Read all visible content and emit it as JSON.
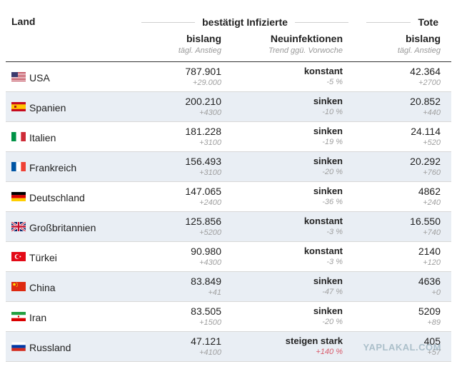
{
  "header": {
    "land": "Land",
    "group_label": "bestätigt Infizierte",
    "tote": "Tote",
    "col1_main": "bislang",
    "col1_sub": "tägl. Anstieg",
    "col2_main": "Neuinfektionen",
    "col2_sub": "Trend ggü. Vorwoche",
    "col3_main": "bislang",
    "col3_sub": "tägl. Anstieg"
  },
  "rows": [
    {
      "country": "USA",
      "flag": "us-flag",
      "infected": "787.901",
      "infected_daily": "+29.000",
      "trend": "konstant",
      "trend_color": "orange",
      "trend_change": "-5 %",
      "deaths": "42.364",
      "deaths_daily": "+2700"
    },
    {
      "country": "Spanien",
      "flag": "es-flag",
      "infected": "200.210",
      "infected_daily": "+4300",
      "trend": "sinken",
      "trend_color": "gray",
      "trend_change": "-10 %",
      "deaths": "20.852",
      "deaths_daily": "+440"
    },
    {
      "country": "Italien",
      "flag": "it-flag",
      "infected": "181.228",
      "infected_daily": "+3100",
      "trend": "sinken",
      "trend_color": "gray",
      "trend_change": "-19 %",
      "deaths": "24.114",
      "deaths_daily": "+520"
    },
    {
      "country": "Frankreich",
      "flag": "fr-flag",
      "infected": "156.493",
      "infected_daily": "+3100",
      "trend": "sinken",
      "trend_color": "gray",
      "trend_change": "-20 %",
      "deaths": "20.292",
      "deaths_daily": "+760"
    },
    {
      "country": "Deutschland",
      "flag": "de-flag",
      "infected": "147.065",
      "infected_daily": "+2400",
      "trend": "sinken",
      "trend_color": "gray",
      "trend_change": "-36 %",
      "deaths": "4862",
      "deaths_daily": "+240"
    },
    {
      "country": "Großbritannien",
      "flag": "gb-flag",
      "infected": "125.856",
      "infected_daily": "+5200",
      "trend": "konstant",
      "trend_color": "orange",
      "trend_change": "-3 %",
      "deaths": "16.550",
      "deaths_daily": "+740"
    },
    {
      "country": "Türkei",
      "flag": "tr-flag",
      "infected": "90.980",
      "infected_daily": "+4300",
      "trend": "konstant",
      "trend_color": "orange",
      "trend_change": "-3 %",
      "deaths": "2140",
      "deaths_daily": "+120"
    },
    {
      "country": "China",
      "flag": "cn-flag",
      "infected": "83.849",
      "infected_daily": "+41",
      "trend": "sinken",
      "trend_color": "gray",
      "trend_change": "-47 %",
      "deaths": "4636",
      "deaths_daily": "+0"
    },
    {
      "country": "Iran",
      "flag": "ir-flag",
      "infected": "83.505",
      "infected_daily": "+1500",
      "trend": "sinken",
      "trend_color": "gray",
      "trend_change": "-20 %",
      "deaths": "5209",
      "deaths_daily": "+89"
    },
    {
      "country": "Russland",
      "flag": "ru-flag",
      "infected": "47.121",
      "infected_daily": "+4100",
      "trend": "steigen stark",
      "trend_color": "red",
      "trend_change": "+140 %",
      "deaths": "405",
      "deaths_daily": "+57"
    }
  ],
  "colors": {
    "orange": "#d49a0c",
    "gray": "#888888",
    "red": "#b0102a",
    "row_alt": "#e9eef4"
  },
  "watermark": "YAPLAKAL.COM"
}
